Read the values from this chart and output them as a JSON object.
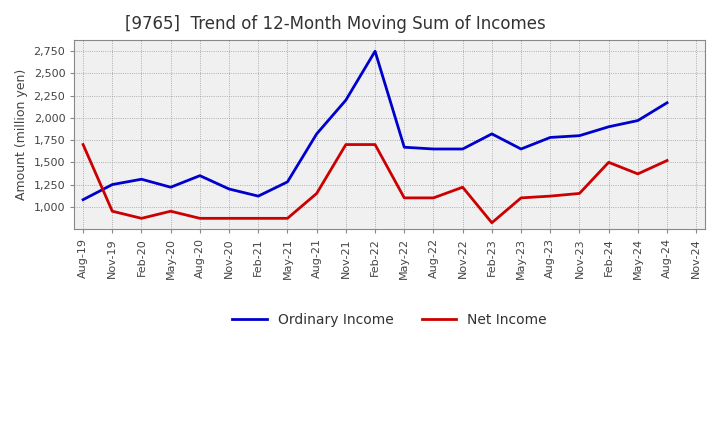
{
  "title": "[9765]  Trend of 12-Month Moving Sum of Incomes",
  "ylabel": "Amount (million yen)",
  "background_color": "#ffffff",
  "plot_bg_color": "#f0f0f0",
  "grid_color": "#999999",
  "x_labels": [
    "Aug-19",
    "Nov-19",
    "Feb-20",
    "May-20",
    "Aug-20",
    "Nov-20",
    "Feb-21",
    "May-21",
    "Aug-21",
    "Nov-21",
    "Feb-22",
    "May-22",
    "Aug-22",
    "Nov-22",
    "Feb-23",
    "May-23",
    "Aug-23",
    "Nov-23",
    "Feb-24",
    "May-24",
    "Aug-24",
    "Nov-24"
  ],
  "ordinary_income": [
    1080,
    1250,
    1310,
    1220,
    1350,
    1200,
    1120,
    1280,
    1820,
    2200,
    2750,
    1670,
    1650,
    1650,
    1820,
    1650,
    1780,
    1800,
    1900,
    1970,
    2170,
    null
  ],
  "net_income": [
    1700,
    950,
    870,
    950,
    870,
    870,
    870,
    870,
    1150,
    1700,
    1700,
    1100,
    1100,
    1220,
    820,
    1100,
    1120,
    1150,
    1500,
    1370,
    1520,
    null
  ],
  "ordinary_income_color": "#0000cc",
  "net_income_color": "#cc0000",
  "ylim_min": 750,
  "ylim_max": 2875,
  "yticks": [
    1000,
    1250,
    1500,
    1750,
    2000,
    2250,
    2500,
    2750
  ],
  "title_fontsize": 12,
  "ylabel_fontsize": 9,
  "tick_fontsize": 8,
  "legend_fontsize": 10,
  "line_width": 2.0
}
